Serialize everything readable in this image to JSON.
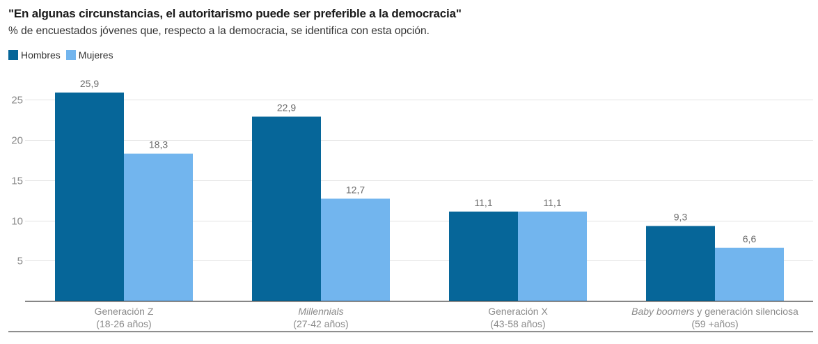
{
  "header": {
    "title": "\"En algunas circunstancias, el autoritarismo puede ser preferible a la democracia\"",
    "subtitle": "% de encuestados jóvenes que, respecto a la democracia, se identifica con esta opción."
  },
  "legend": [
    {
      "label": "Hombres",
      "color": "#066699"
    },
    {
      "label": "Mujeres",
      "color": "#72b5ee"
    }
  ],
  "chart_data": {
    "type": "bar",
    "title": "\"En algunas circunstancias, el autoritarismo puede ser preferible a la democracia\"",
    "subtitle": "% de encuestados jóvenes que, respecto a la democracia, se identifica con esta opción.",
    "xlabel": "",
    "ylabel": "",
    "ylim": [
      0,
      27
    ],
    "yticks": [
      5,
      10,
      15,
      20,
      25
    ],
    "grid": true,
    "legend_position": "top-left",
    "categories": [
      {
        "line1": [
          {
            "text": "Generación Z",
            "italic": false
          }
        ],
        "line2": "(18-26 años)"
      },
      {
        "line1": [
          {
            "text": "Millennials",
            "italic": true
          }
        ],
        "line2": "(27-42 años)"
      },
      {
        "line1": [
          {
            "text": "Generación X",
            "italic": false
          }
        ],
        "line2": "(43-58 años)"
      },
      {
        "line1": [
          {
            "text": "Baby boomers",
            "italic": true
          },
          {
            "text": " y generación silenciosa",
            "italic": false
          }
        ],
        "line2": "(59 +años)"
      }
    ],
    "series": [
      {
        "name": "Hombres",
        "color": "#066699",
        "values": [
          25.9,
          22.9,
          11.1,
          9.3
        ],
        "labels": [
          "25,9",
          "22,9",
          "11,1",
          "9,3"
        ]
      },
      {
        "name": "Mujeres",
        "color": "#72b5ee",
        "values": [
          18.3,
          12.7,
          11.1,
          6.6
        ],
        "labels": [
          "18,3",
          "12,7",
          "11,1",
          "6,6"
        ]
      }
    ]
  }
}
